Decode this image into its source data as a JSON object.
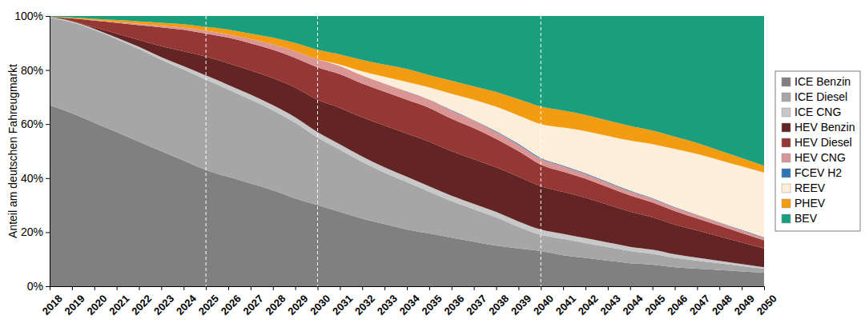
{
  "chart_data": {
    "type": "area",
    "stacked": true,
    "y_label": "Anteil am deutschen Fahreugmarkt",
    "x": [
      2018,
      2019,
      2020,
      2021,
      2022,
      2023,
      2024,
      2025,
      2026,
      2027,
      2028,
      2029,
      2030,
      2031,
      2032,
      2033,
      2034,
      2035,
      2036,
      2037,
      2038,
      2039,
      2040,
      2041,
      2042,
      2043,
      2044,
      2045,
      2046,
      2047,
      2048,
      2049,
      2050
    ],
    "xlim": [
      2018,
      2050
    ],
    "xticks": [
      2018,
      2019,
      2020,
      2021,
      2022,
      2023,
      2024,
      2025,
      2026,
      2027,
      2028,
      2029,
      2030,
      2031,
      2032,
      2033,
      2034,
      2035,
      2036,
      2037,
      2038,
      2039,
      2040,
      2041,
      2042,
      2043,
      2044,
      2045,
      2046,
      2047,
      2048,
      2049,
      2050
    ],
    "ylim": [
      0,
      100
    ],
    "yticks": [
      {
        "value": 0,
        "label": "0%"
      },
      {
        "value": 20,
        "label": "20%"
      },
      {
        "value": 40,
        "label": "40%"
      },
      {
        "value": 60,
        "label": "60%"
      },
      {
        "value": 80,
        "label": "80%"
      },
      {
        "value": 100,
        "label": "100%"
      }
    ],
    "grid": false,
    "legend": "right",
    "reference_lines": [
      2025,
      2030,
      2040
    ],
    "series": [
      {
        "name": "ICE Benzin",
        "color": "#808080",
        "values": [
          67,
          64,
          60.5,
          57,
          53.5,
          50,
          46.5,
          43,
          40.5,
          38,
          35.5,
          32.5,
          30,
          27.5,
          25,
          23,
          21,
          19.5,
          18,
          16.5,
          15,
          14,
          13,
          11.5,
          10.5,
          9.5,
          8.5,
          8,
          7,
          6.5,
          6,
          5.5,
          5
        ]
      },
      {
        "name": "ICE Diesel",
        "color": "#a6a6a6",
        "values": [
          32.3,
          33.6,
          34.3,
          34.4,
          34.3,
          33.8,
          33.7,
          33.5,
          32.3,
          31.1,
          29.6,
          28,
          25,
          23,
          21,
          19,
          17.5,
          15.5,
          13.5,
          12,
          10.5,
          8,
          6,
          6,
          5.5,
          5,
          4.5,
          4,
          3.5,
          3,
          2.5,
          2,
          1.5
        ]
      },
      {
        "name": "ICE CNG",
        "color": "#c8c8c8",
        "values": [
          0.3,
          0.4,
          0.5,
          0.6,
          0.8,
          1,
          1.2,
          1.5,
          1.7,
          1.8,
          1.9,
          2,
          2,
          2,
          2,
          2,
          2,
          2,
          2,
          2,
          2,
          2,
          2,
          1.9,
          1.8,
          1.7,
          1.6,
          1.5,
          1.3,
          1.1,
          0.9,
          0.7,
          0.5
        ]
      },
      {
        "name": "HEV Benzin",
        "color": "#632523",
        "values": [
          0,
          0.1,
          0.5,
          1.5,
          2.5,
          4,
          5.5,
          7,
          8,
          9,
          10,
          11,
          12,
          13.5,
          14.5,
          15.5,
          16,
          16.5,
          16.5,
          16.5,
          16.5,
          16.5,
          16,
          15.5,
          15,
          14,
          13,
          12,
          11,
          10,
          9,
          8,
          7
        ]
      },
      {
        "name": "HEV Diesel",
        "color": "#953735",
        "values": [
          0.1,
          1,
          2.5,
          4,
          5.5,
          7,
          8,
          8.5,
          9.5,
          10,
          10.5,
          11,
          12,
          12.5,
          12.5,
          12.5,
          12.5,
          12.5,
          12,
          11.5,
          10.5,
          9.5,
          8,
          7.5,
          7,
          6.5,
          6,
          5.5,
          5,
          4.5,
          4,
          3.5,
          3
        ]
      },
      {
        "name": "HEV CNG",
        "color": "#d99694",
        "values": [
          0,
          0.1,
          0.2,
          0.3,
          0.5,
          0.6,
          0.8,
          1,
          1.2,
          1.5,
          2,
          2.5,
          3,
          3,
          3,
          3,
          3,
          3,
          3,
          2.8,
          2.6,
          2.4,
          2.2,
          2,
          1.8,
          1.6,
          1.5,
          1.4,
          1.3,
          1.2,
          1.1,
          1,
          0.9
        ]
      },
      {
        "name": "FCEV H2",
        "color": "#2e75b6",
        "values": [
          0,
          0,
          0,
          0,
          0,
          0,
          0,
          0,
          0,
          0,
          0,
          0,
          0,
          0,
          0,
          0,
          0.1,
          0.1,
          0.2,
          0.2,
          0.3,
          0.3,
          0.3,
          0.3,
          0.3,
          0.3,
          0.3,
          0.2,
          0.2,
          0.2,
          0.2,
          0.2,
          0.2
        ]
      },
      {
        "name": "REEV",
        "color": "#fdeed9",
        "values": [
          0,
          0,
          0,
          0,
          0,
          0,
          0,
          0,
          0,
          0,
          0,
          0,
          0,
          0.5,
          1.5,
          2.5,
          3.5,
          4.5,
          6,
          7.5,
          9,
          10.5,
          12.5,
          14,
          15.5,
          17,
          18.5,
          20,
          21.5,
          22.5,
          23,
          23.5,
          24
        ]
      },
      {
        "name": "PHEV",
        "color": "#f39c12",
        "values": [
          0.1,
          0.3,
          0.5,
          0.7,
          0.9,
          1.1,
          1.3,
          1.5,
          1.8,
          2.1,
          2.5,
          3,
          3.5,
          3.8,
          4.2,
          4.5,
          4.8,
          4.5,
          4.8,
          5,
          5.5,
          6,
          6.5,
          6.3,
          6,
          5.7,
          5.4,
          5,
          4.5,
          4,
          3.5,
          3,
          2.5
        ]
      },
      {
        "name": "BEV",
        "color": "#1a9e7e",
        "values": [
          0.2,
          0.5,
          1,
          1.5,
          2,
          2.5,
          3,
          4,
          5,
          6.5,
          8,
          10,
          12.5,
          14.2,
          16.3,
          18,
          19.6,
          21.9,
          24,
          26,
          28.1,
          30.8,
          33.5,
          35,
          36.6,
          38.7,
          40.7,
          42.4,
          44.7,
          47,
          49.8,
          52.6,
          55.4
        ]
      }
    ]
  }
}
